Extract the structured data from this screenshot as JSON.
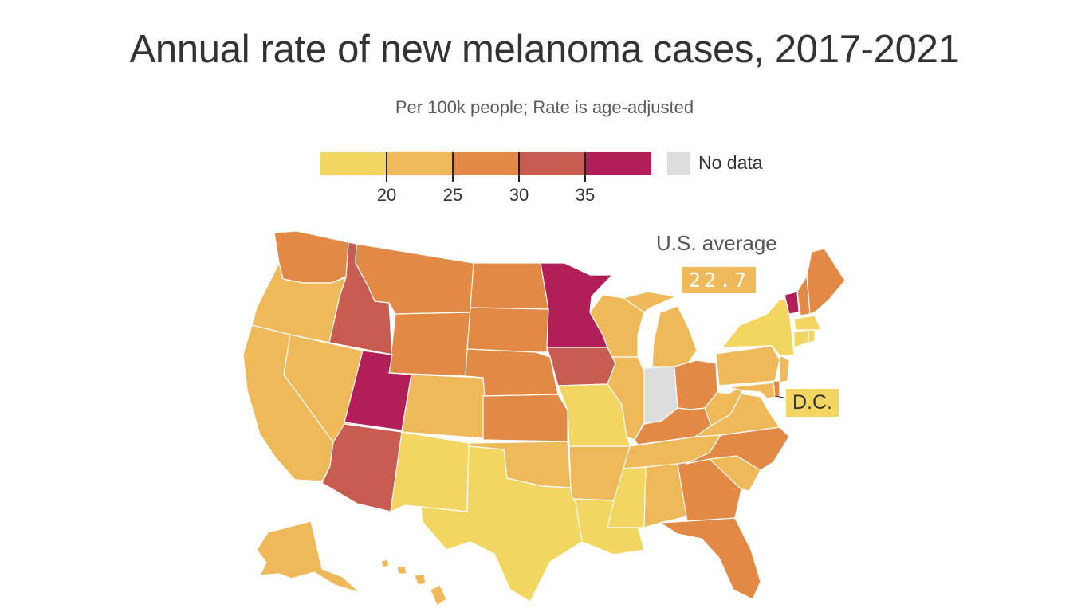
{
  "title": "Annual rate of new melanoma cases, 2017-2021",
  "subtitle": "Per 100k people; Rate is age-adjusted",
  "legend": {
    "bins": [
      {
        "color": "#f2d661"
      },
      {
        "color": "#efb95a"
      },
      {
        "color": "#e28a45"
      },
      {
        "color": "#c95c51"
      },
      {
        "color": "#b21e57"
      }
    ],
    "thresholds": [
      "20",
      "25",
      "30",
      "35"
    ],
    "no_data_label": "No data",
    "no_data_color": "#dddddd"
  },
  "us_average": {
    "label": "U.S. average",
    "value": "22.7"
  },
  "dc_label": "D.C.",
  "map_colors": {
    "lightest": "#f2d661",
    "light": "#efb95a",
    "medium": "#e28a45",
    "dark": "#c95c51",
    "darkest": "#b21e57",
    "nodata": "#dddddd"
  }
}
